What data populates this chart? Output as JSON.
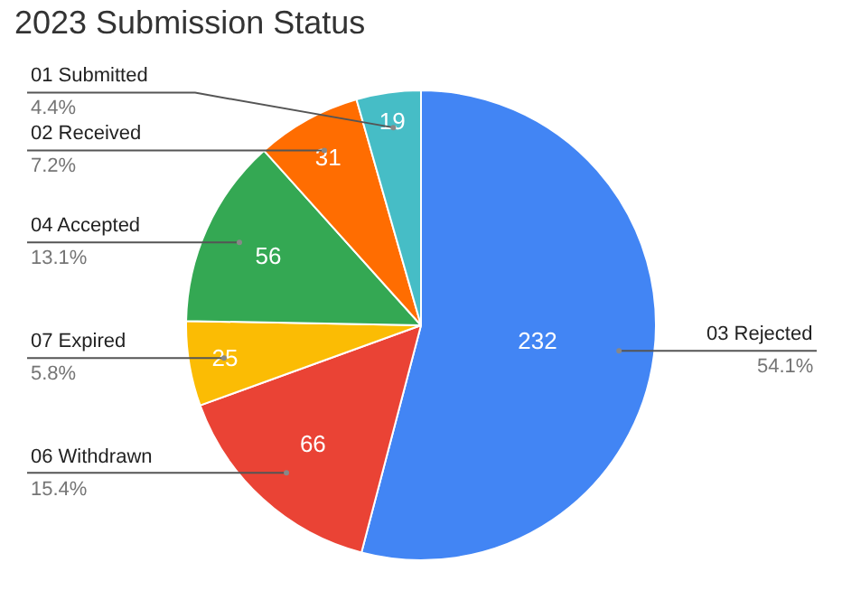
{
  "chart_data": {
    "type": "pie",
    "title": "2023 Submission Status",
    "categories": [
      "03 Rejected",
      "06 Withdrawn",
      "07 Expired",
      "04 Accepted",
      "02 Received",
      "01 Submitted"
    ],
    "values": [
      232,
      66,
      25,
      56,
      31,
      19
    ],
    "colors": [
      "#4285f4",
      "#ea4335",
      "#fbbc04",
      "#34a853",
      "#ff6d01",
      "#46bdc6"
    ],
    "data_labels": true,
    "annotations": [
      "54.1%",
      "15.4%",
      "5.8%",
      "13.1%",
      "7.2%",
      "4.4%"
    ]
  }
}
